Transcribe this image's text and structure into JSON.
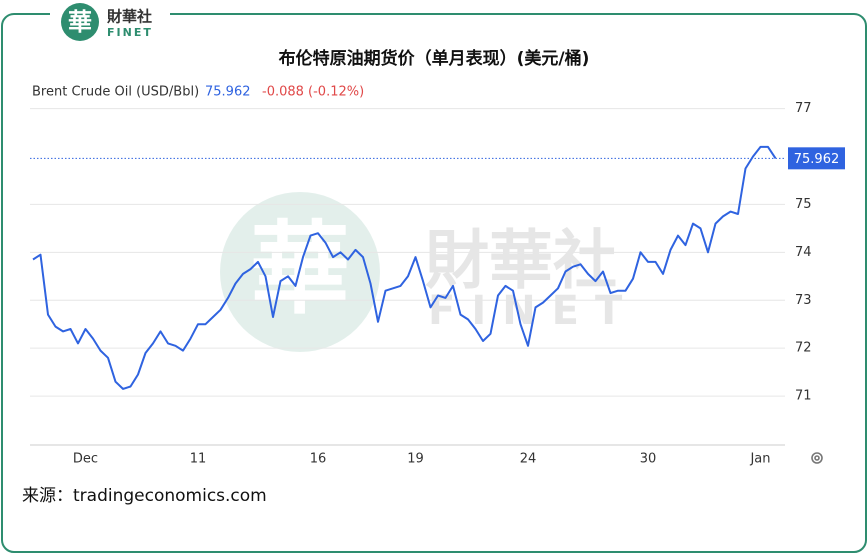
{
  "logo": {
    "mark": "華",
    "name": "財華社",
    "sub": "FINET"
  },
  "chart_data": {
    "type": "line",
    "title": "布伦特原油期货价（单月表现）(美元/桶)",
    "change_label": "-0.088 (-0.12%)",
    "categories": [
      null,
      null,
      null,
      null,
      null,
      null,
      null,
      "Dec",
      null,
      null,
      null,
      null,
      null,
      null,
      null,
      null,
      null,
      null,
      null,
      null,
      null,
      null,
      "11",
      null,
      null,
      null,
      null,
      null,
      null,
      null,
      null,
      null,
      null,
      null,
      null,
      null,
      null,
      null,
      "16",
      null,
      null,
      null,
      null,
      null,
      null,
      null,
      null,
      null,
      null,
      null,
      null,
      "19",
      null,
      null,
      null,
      null,
      null,
      null,
      null,
      null,
      null,
      null,
      null,
      null,
      null,
      null,
      "24",
      null,
      null,
      null,
      null,
      null,
      null,
      null,
      null,
      null,
      null,
      null,
      null,
      null,
      null,
      null,
      "30",
      null,
      null,
      null,
      null,
      null,
      null,
      null,
      null,
      null,
      null,
      null,
      null,
      null,
      null,
      "Jan",
      null,
      null
    ],
    "series": [
      {
        "name": "Brent Crude Oil (USD/Bbl)",
        "color": "#2f63e0",
        "values": [
          73.85,
          73.95,
          72.7,
          72.45,
          72.35,
          72.4,
          72.1,
          72.4,
          72.2,
          71.95,
          71.8,
          71.3,
          71.15,
          71.2,
          71.45,
          71.9,
          72.1,
          72.35,
          72.1,
          72.05,
          71.95,
          72.2,
          72.5,
          72.5,
          72.65,
          72.8,
          73.05,
          73.35,
          73.55,
          73.65,
          73.8,
          73.5,
          72.65,
          73.4,
          73.5,
          73.3,
          73.9,
          74.35,
          74.4,
          74.2,
          73.9,
          74.0,
          73.85,
          74.05,
          73.9,
          73.35,
          72.55,
          73.2,
          73.25,
          73.3,
          73.5,
          73.9,
          73.4,
          72.85,
          73.1,
          73.05,
          73.3,
          72.7,
          72.6,
          72.4,
          72.15,
          72.3,
          73.1,
          73.3,
          73.2,
          72.5,
          72.05,
          72.85,
          72.95,
          73.1,
          73.25,
          73.6,
          73.7,
          73.75,
          73.55,
          73.4,
          73.6,
          73.15,
          73.2,
          73.2,
          73.45,
          74.0,
          73.8,
          73.8,
          73.55,
          74.05,
          74.35,
          74.15,
          74.6,
          74.5,
          74.0,
          74.6,
          74.75,
          74.85,
          74.8,
          75.75,
          76.0,
          76.2,
          76.2,
          75.962
        ]
      }
    ],
    "ylim": [
      70,
      77.2
    ],
    "yticks": [
      71,
      72,
      73,
      74,
      75,
      77
    ],
    "grid": true,
    "last_value_line": true
  },
  "source": "来源：tradingeconomics.com"
}
